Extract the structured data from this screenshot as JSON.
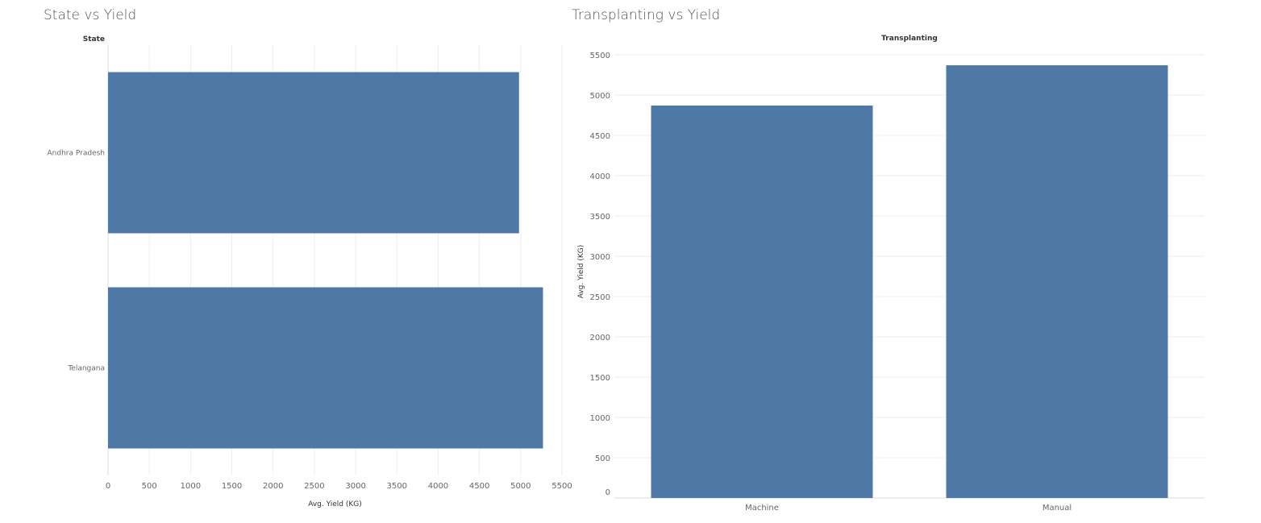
{
  "chart_data": [
    {
      "type": "bar",
      "orientation": "horizontal",
      "title": "State vs Yield",
      "row_header": "State",
      "xlabel": "Avg. Yield (KG)",
      "categories": [
        "Andhra Pradesh",
        "Telangana"
      ],
      "values": [
        4980,
        5270
      ],
      "xlim": [
        0,
        5500
      ],
      "ticks": [
        "0",
        "500",
        "1000",
        "1500",
        "2000",
        "2500",
        "3000",
        "3500",
        "4000",
        "4500",
        "5000",
        "5500"
      ],
      "grid": true
    },
    {
      "type": "bar",
      "orientation": "vertical",
      "title": "Transplanting vs Yield",
      "column_header": "Transplanting",
      "ylabel": "Avg. Yield (KG)",
      "categories": [
        "Machine",
        "Manual"
      ],
      "values": [
        4870,
        5370
      ],
      "ylim": [
        0,
        5500
      ],
      "ticks": [
        "0",
        "500",
        "1000",
        "1500",
        "2000",
        "2500",
        "3000",
        "3500",
        "4000",
        "4500",
        "5000",
        "5500"
      ],
      "grid": true
    }
  ],
  "colors": {
    "bar": "#4e79a7",
    "grid": "#eeeeee",
    "axis_text": "#666666"
  }
}
